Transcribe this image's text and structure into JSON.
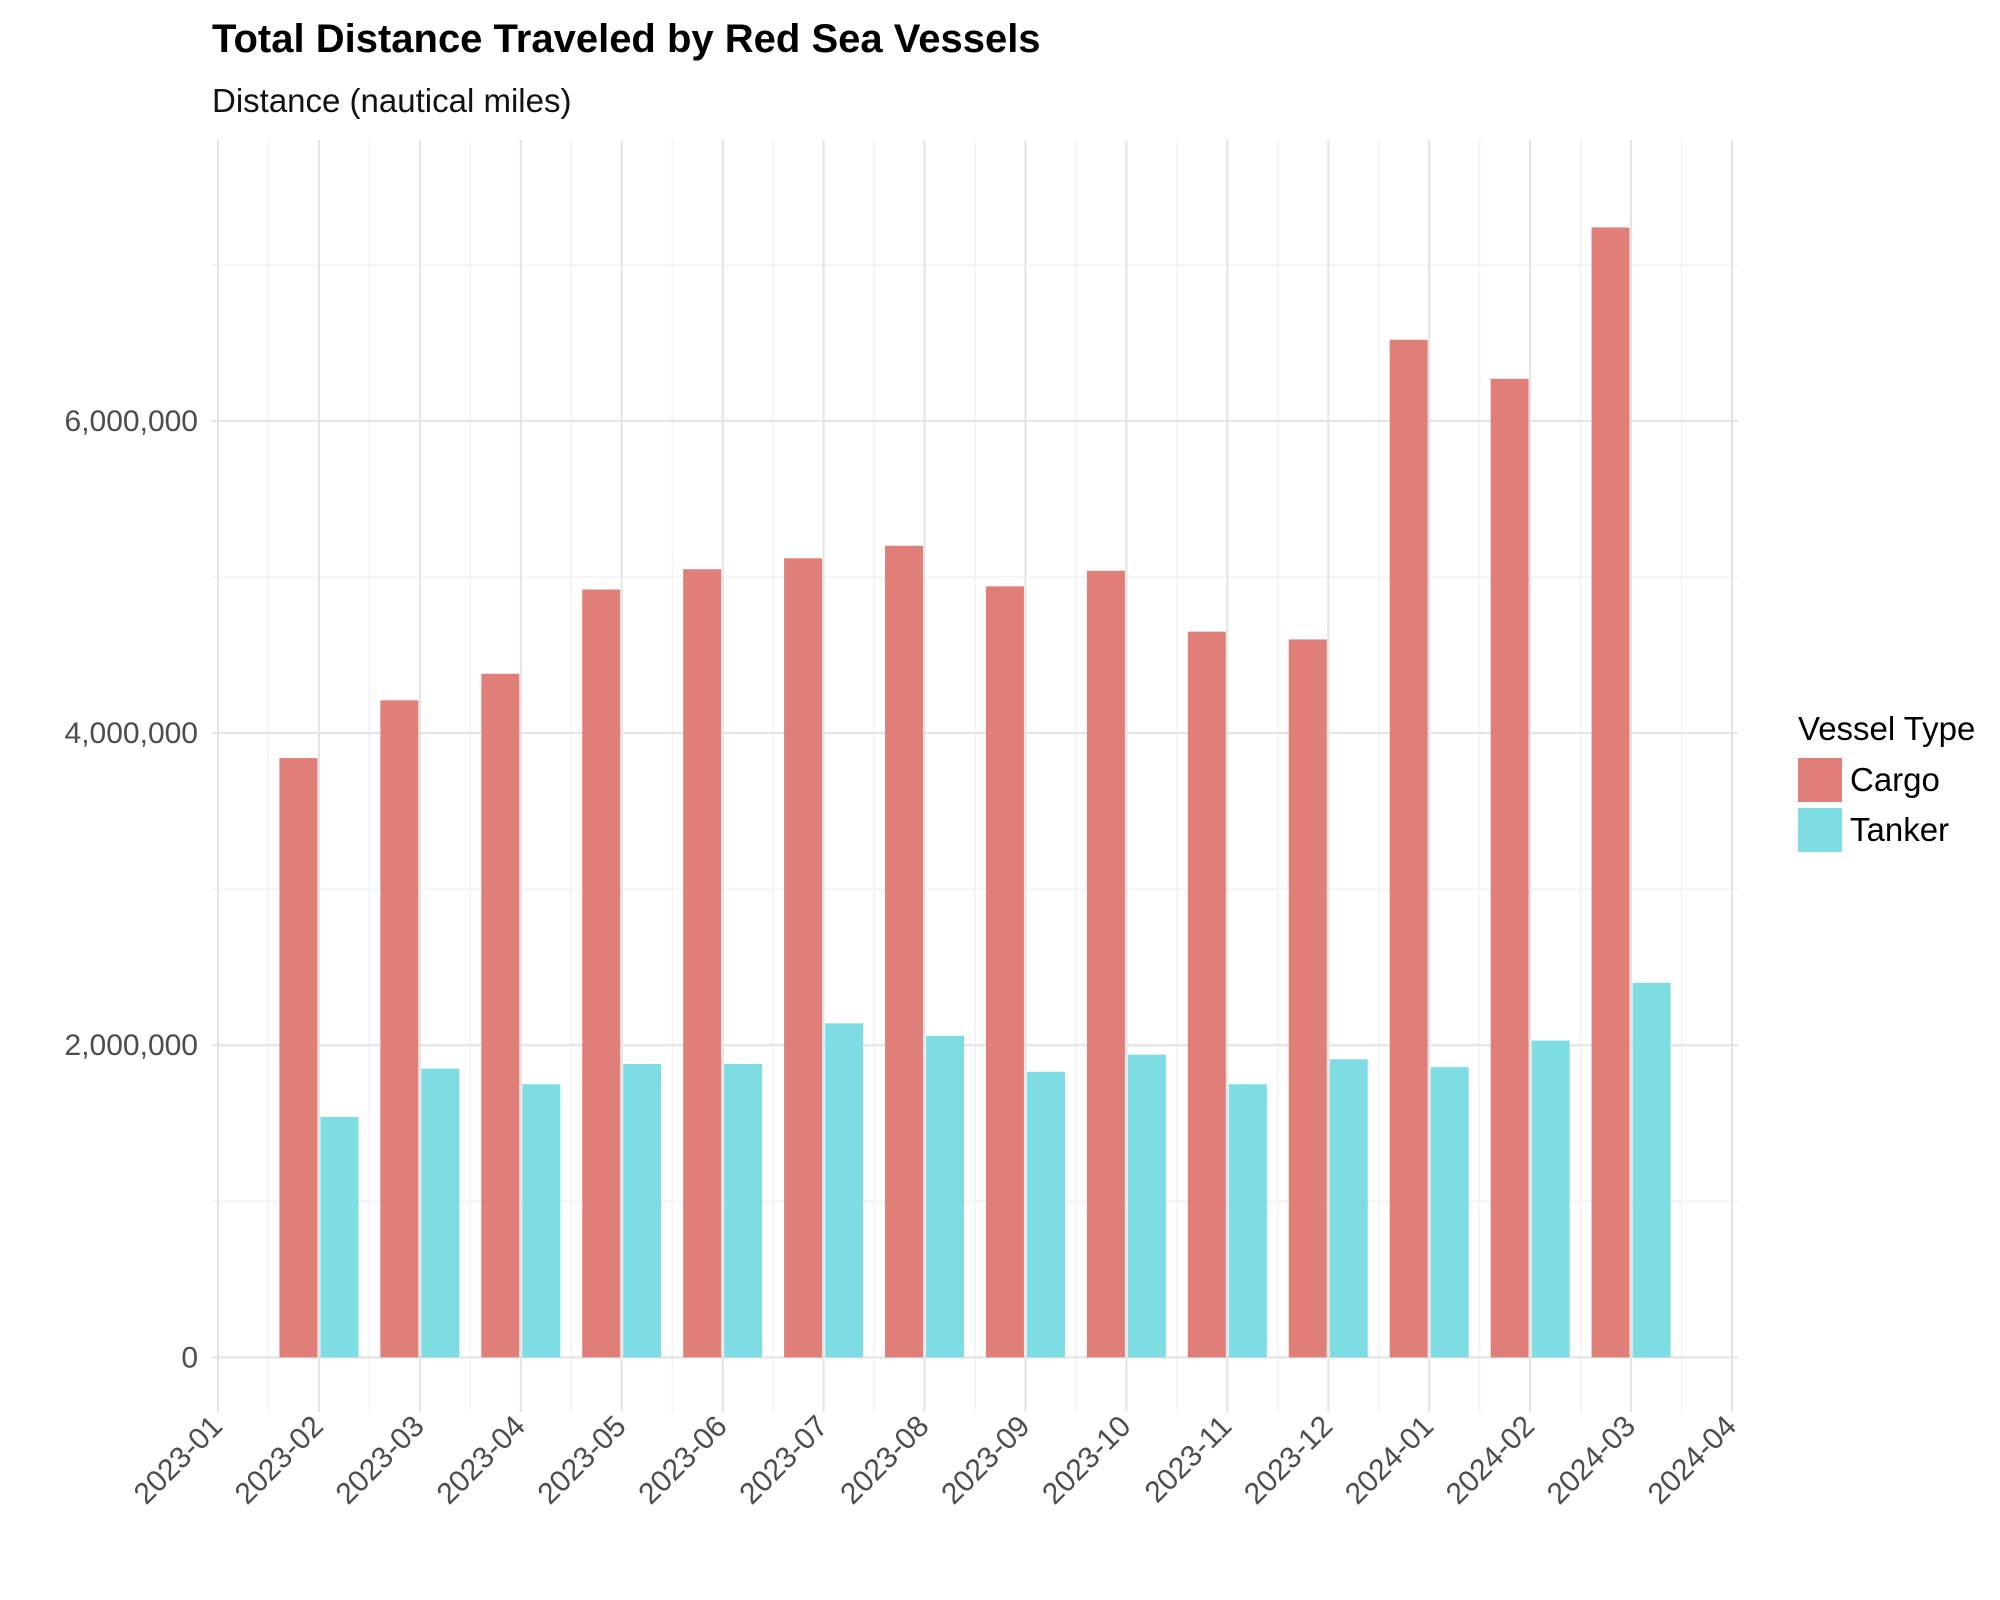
{
  "chart_data": {
    "type": "bar",
    "title": "Total Distance Traveled by Red Sea Vessels",
    "subtitle": "Distance (nautical miles)",
    "xlabel": "",
    "ylabel": "",
    "x_ticks": [
      "2023-01",
      "2023-02",
      "2023-03",
      "2023-04",
      "2023-05",
      "2023-06",
      "2023-07",
      "2023-08",
      "2023-09",
      "2023-10",
      "2023-11",
      "2023-12",
      "2024-01",
      "2024-02",
      "2024-03",
      "2024-04"
    ],
    "y_ticks": [
      0,
      2000000,
      4000000,
      6000000
    ],
    "y_tick_labels": [
      "0",
      "2,000,000",
      "4,000,000",
      "6,000,000"
    ],
    "categories": [
      "2023-01",
      "2023-02",
      "2023-03",
      "2023-04",
      "2023-05",
      "2023-06",
      "2023-07",
      "2023-08",
      "2023-09",
      "2023-10",
      "2023-11",
      "2023-12",
      "2024-01",
      "2024-02"
    ],
    "series": [
      {
        "name": "Cargo",
        "color": "#e07f79",
        "values": [
          3840000,
          4210000,
          4380000,
          4920000,
          5050000,
          5120000,
          5200000,
          4940000,
          5040000,
          4650000,
          4600000,
          6520000,
          6270000,
          7240000
        ]
      },
      {
        "name": "Tanker",
        "color": "#7ddde2",
        "values": [
          1540000,
          1850000,
          1750000,
          1880000,
          1880000,
          2140000,
          2060000,
          1830000,
          1940000,
          1750000,
          1910000,
          1860000,
          2030000,
          2400000
        ]
      }
    ],
    "ylim": [
      -350000,
      7800000
    ],
    "grid": true,
    "legend": {
      "title": "Vessel Type",
      "placement": "right",
      "entries": [
        "Cargo",
        "Tanker"
      ]
    }
  }
}
